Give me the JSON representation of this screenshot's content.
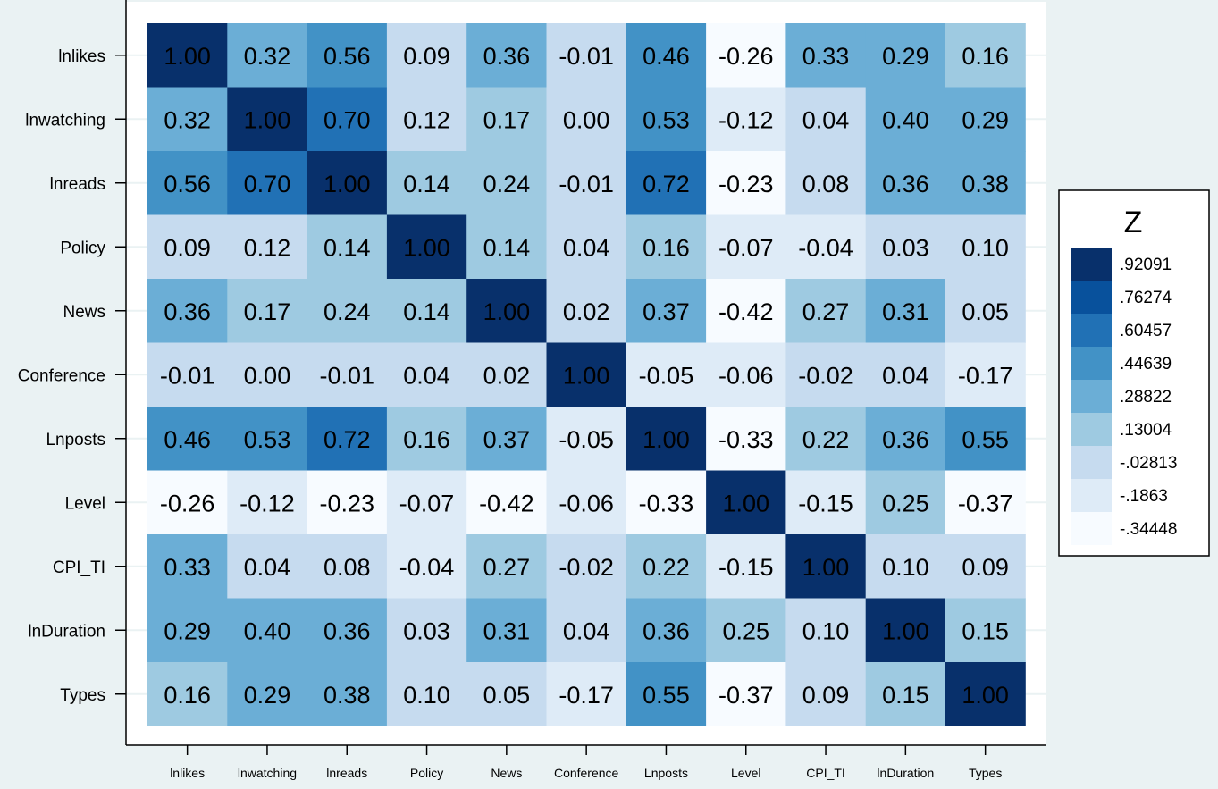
{
  "chart_data": {
    "type": "heatmap",
    "rows": [
      "lnlikes",
      "lnwatching",
      "lnreads",
      "Policy",
      "News",
      "Conference",
      "Lnposts",
      "Level",
      "CPI_TI",
      "lnDuration",
      "Types"
    ],
    "columns": [
      "lnlikes",
      "lnwatching",
      "lnreads",
      "Policy",
      "News",
      "Conference",
      "Lnposts",
      "Level",
      "CPI_TI",
      "lnDuration",
      "Types"
    ],
    "values": [
      [
        1.0,
        0.32,
        0.56,
        0.09,
        0.36,
        -0.01,
        0.46,
        -0.26,
        0.33,
        0.29,
        0.16
      ],
      [
        0.32,
        1.0,
        0.7,
        0.12,
        0.17,
        -0.0,
        0.53,
        -0.12,
        0.04,
        0.4,
        0.29
      ],
      [
        0.56,
        0.7,
        1.0,
        0.14,
        0.24,
        -0.01,
        0.72,
        -0.23,
        0.08,
        0.36,
        0.38
      ],
      [
        0.09,
        0.12,
        0.14,
        1.0,
        0.14,
        0.04,
        0.16,
        -0.07,
        -0.04,
        0.03,
        0.1
      ],
      [
        0.36,
        0.17,
        0.24,
        0.14,
        1.0,
        0.02,
        0.37,
        -0.42,
        0.27,
        0.31,
        0.05
      ],
      [
        -0.01,
        -0.0,
        -0.01,
        0.04,
        0.02,
        1.0,
        -0.05,
        -0.06,
        -0.02,
        0.04,
        -0.17
      ],
      [
        0.46,
        0.53,
        0.72,
        0.16,
        0.37,
        -0.05,
        1.0,
        -0.33,
        0.22,
        0.36,
        0.55
      ],
      [
        -0.26,
        -0.12,
        -0.23,
        -0.07,
        -0.42,
        -0.06,
        -0.33,
        1.0,
        -0.15,
        0.25,
        -0.37
      ],
      [
        0.33,
        0.04,
        0.08,
        -0.04,
        0.27,
        -0.02,
        0.22,
        -0.15,
        1.0,
        0.1,
        0.09
      ],
      [
        0.29,
        0.4,
        0.36,
        0.03,
        0.31,
        0.04,
        0.36,
        0.25,
        0.1,
        1.0,
        0.15
      ],
      [
        0.16,
        0.29,
        0.38,
        0.1,
        0.05,
        -0.17,
        0.55,
        -0.37,
        0.09,
        0.15,
        1.0
      ]
    ],
    "legend": {
      "title": "Z",
      "placement": "right",
      "breaks": [
        ".92091",
        ".76274",
        ".60457",
        ".44639",
        ".28822",
        ".13004",
        "-.02813",
        "-.1863",
        "-.34448"
      ],
      "colors": [
        "#08306b",
        "#08519c",
        "#2171b5",
        "#4292c6",
        "#6baed6",
        "#9ecae1",
        "#c6dbef",
        "#deebf7",
        "#f7fbff"
      ]
    },
    "background_color": "#eaf2f3",
    "plot_background_color": "#ffffff"
  }
}
